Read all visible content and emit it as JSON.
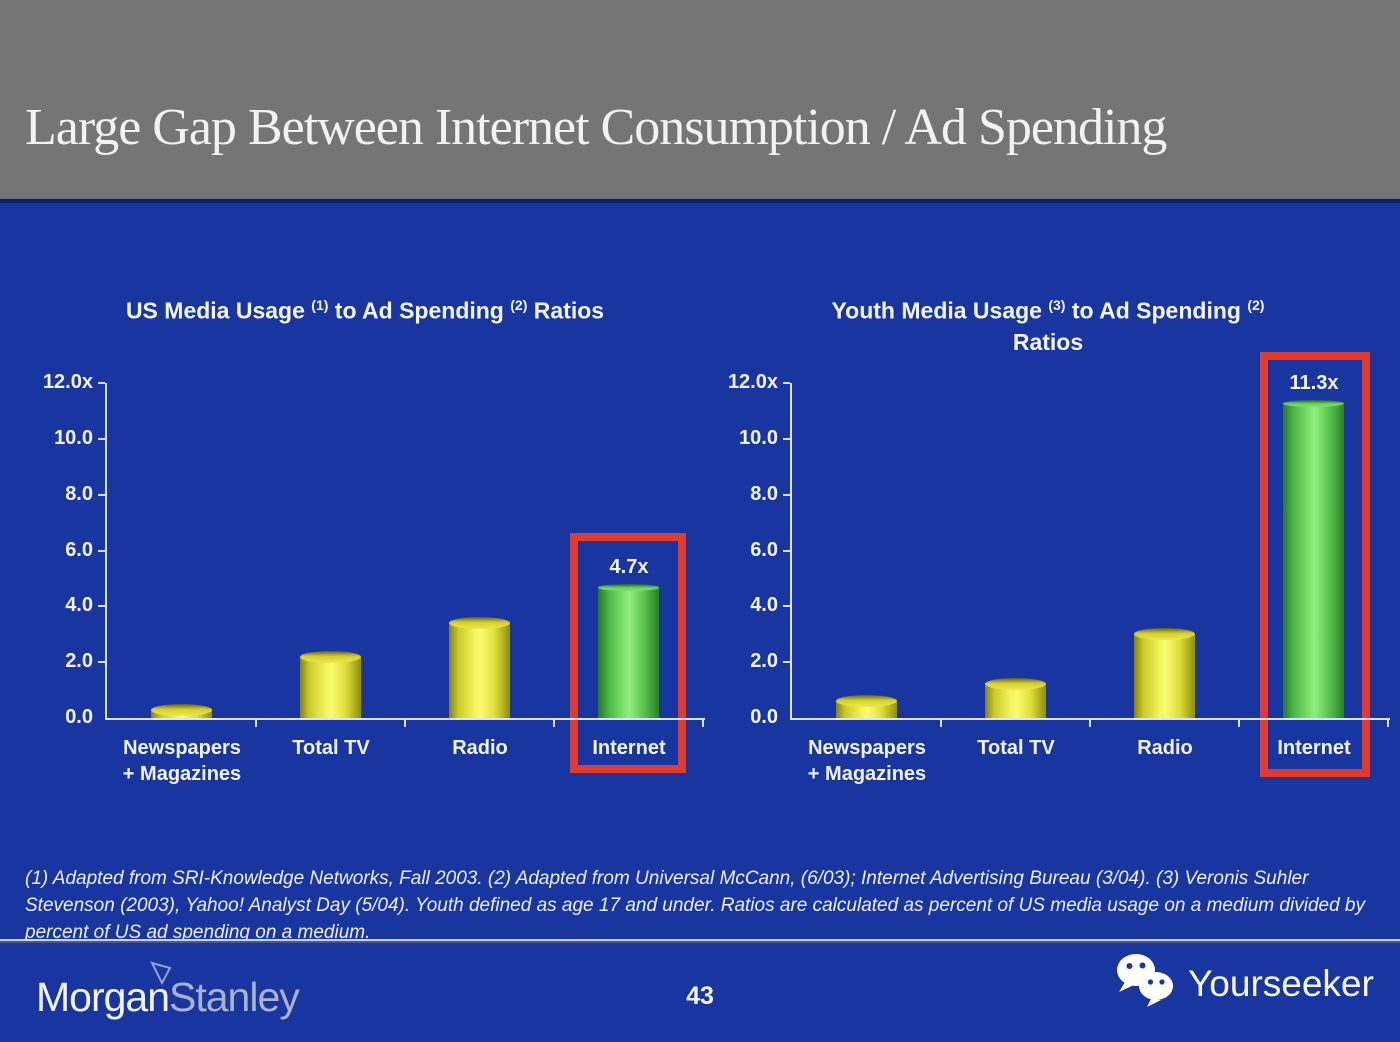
{
  "slide": {
    "title": "Large Gap Between Internet Consumption / Ad Spending",
    "page_number": "43",
    "footnote": "(1) Adapted from SRI-Knowledge Networks, Fall 2003.  (2) Adapted from Universal McCann, (6/03); Internet Advertising Bureau (3/04). (3) Veronis Suhler Stevenson (2003), Yahoo! Analyst Day (5/04).  Youth defined as age 17 and under.  Ratios are calculated as percent of US media usage on a medium divided by percent of US ad spending on a medium.",
    "brand": {
      "word1": "Morgan",
      "word2": "Stanley"
    },
    "watermark": "Yourseeker"
  },
  "icons": {
    "watermark_logo": "wechat-speech-bubbles-icon",
    "brand_mark": "morgan-stanley-triangle-icon"
  },
  "colors": {
    "background": "#1935a0",
    "header": "#757575",
    "highlight_box": "#e13b30",
    "bar_yellow": "#f4f45c",
    "bar_green": "#6fdd5f",
    "axis": "#dde4f8",
    "text": "#ffffff"
  },
  "chart_data": [
    {
      "type": "bar",
      "title_parts": [
        {
          "text": "US Media Usage "
        },
        {
          "sup": "(1)"
        },
        {
          "text": " to Ad Spending "
        },
        {
          "sup": "(2)"
        },
        {
          "text": " Ratios"
        }
      ],
      "title_plain": "US Media Usage (1) to Ad Spending (2) Ratios",
      "categories": [
        [
          "Newspapers",
          "+ Magazines"
        ],
        [
          "Total TV"
        ],
        [
          "Radio"
        ],
        [
          "Internet"
        ]
      ],
      "values": [
        0.3,
        2.2,
        3.4,
        4.7
      ],
      "bar_labels": [
        "",
        "",
        "",
        "4.7x"
      ],
      "bar_colors": [
        "yellow",
        "yellow",
        "yellow",
        "green"
      ],
      "ytick_labels": [
        "12.0x",
        "10.0",
        "8.0",
        "6.0",
        "4.0",
        "2.0",
        "0.0"
      ],
      "ylim": [
        0,
        12
      ],
      "grid": false,
      "legend": "none",
      "highlight_category": "Internet"
    },
    {
      "type": "bar",
      "title_parts": [
        {
          "text": "Youth Media Usage "
        },
        {
          "sup": "(3)"
        },
        {
          "text": " to Ad Spending "
        },
        {
          "sup": "(2)"
        },
        {
          "br": true
        },
        {
          "text": "Ratios"
        }
      ],
      "title_plain": "Youth Media Usage (3) to Ad Spending (2) Ratios",
      "categories": [
        [
          "Newspapers",
          "+ Magazines"
        ],
        [
          "Total TV"
        ],
        [
          "Radio"
        ],
        [
          "Internet"
        ]
      ],
      "values": [
        0.6,
        1.2,
        3.0,
        11.3
      ],
      "bar_labels": [
        "",
        "",
        "",
        "11.3x"
      ],
      "bar_colors": [
        "yellow",
        "yellow",
        "yellow",
        "green"
      ],
      "ytick_labels": [
        "12.0x",
        "10.0",
        "8.0",
        "6.0",
        "4.0",
        "2.0",
        "0.0"
      ],
      "ylim": [
        0,
        12
      ],
      "grid": false,
      "legend": "none",
      "highlight_category": "Internet"
    }
  ]
}
